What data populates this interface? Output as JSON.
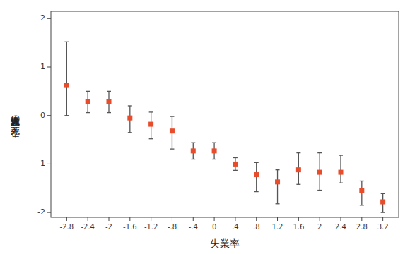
{
  "chart_data": {
    "type": "errorbar",
    "xlabel": "失業率",
    "ylabel": "老人保健施設の死亡率",
    "x": [
      -2.8,
      -2.4,
      -2.0,
      -1.6,
      -1.2,
      -0.8,
      -0.4,
      0.0,
      0.4,
      0.8,
      1.2,
      1.6,
      2.0,
      2.4,
      2.8,
      3.2
    ],
    "values": [
      0.62,
      0.28,
      0.28,
      -0.05,
      -0.18,
      -0.32,
      -0.73,
      -0.73,
      -1.0,
      -1.22,
      -1.37,
      -1.12,
      -1.17,
      -1.17,
      -1.55,
      -1.78
    ],
    "error_lower": [
      0.62,
      0.22,
      0.22,
      0.3,
      0.3,
      0.37,
      0.17,
      0.17,
      0.13,
      0.35,
      0.45,
      0.3,
      0.37,
      0.22,
      0.3,
      0.22
    ],
    "error_upper": [
      0.9,
      0.22,
      0.22,
      0.25,
      0.25,
      0.3,
      0.17,
      0.17,
      0.13,
      0.25,
      0.25,
      0.35,
      0.4,
      0.35,
      0.2,
      0.17
    ],
    "color": "#e84c2b",
    "marker": "square",
    "xlim": [
      -3.1,
      3.5
    ],
    "ylim": [
      -2.1,
      2.15
    ],
    "xticks": [
      -2.8,
      -2.4,
      -2,
      -1.6,
      -1.2,
      {
        "value": -0.8,
        "label": "-.8"
      },
      {
        "value": -0.4,
        "label": "-.4"
      },
      0,
      {
        "value": 0.4,
        "label": ".4"
      },
      {
        "value": 0.8,
        "label": ".8"
      },
      1.2,
      1.6,
      2,
      2.4,
      2.8,
      3.2
    ],
    "yticks": [
      -2,
      -1,
      0,
      1,
      2
    ],
    "grid": false
  }
}
